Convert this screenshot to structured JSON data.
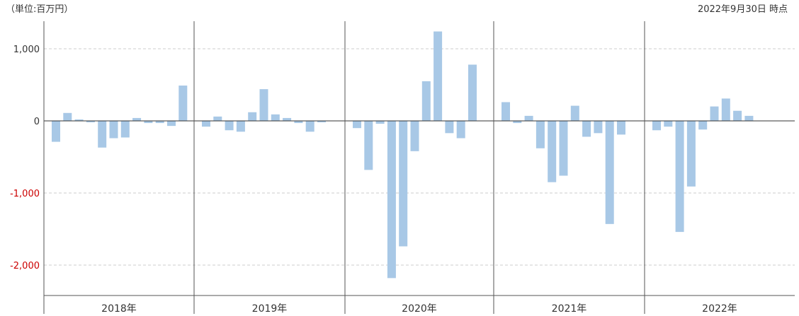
{
  "header": {
    "unit_label": "（単位:百万円）",
    "as_of_label": "2022年9月30日 時点"
  },
  "colors": {
    "bar": "#a8c8e6",
    "negative_tick": "#cc0000",
    "grid": "#cccccc",
    "axis": "#555555"
  },
  "chart_data": {
    "type": "bar",
    "ylim": [
      -2400,
      1350
    ],
    "yticks": [
      {
        "value": 1000,
        "label": "1,000"
      },
      {
        "value": 0,
        "label": "0"
      },
      {
        "value": -1000,
        "label": "-1,000"
      },
      {
        "value": -2000,
        "label": "-2,000"
      }
    ],
    "grid": "dashed-horizontal",
    "groups": [
      {
        "label": "2018年",
        "values": [
          -290,
          110,
          20,
          -20,
          -370,
          -240,
          -230,
          40,
          -30,
          -30,
          -70,
          490
        ]
      },
      {
        "label": "2019年",
        "values": [
          -80,
          60,
          -130,
          -150,
          120,
          440,
          90,
          40,
          -30,
          -150,
          -20
        ]
      },
      {
        "label": "2020年",
        "values": [
          -100,
          -680,
          -40,
          -2180,
          -1740,
          -420,
          550,
          1240,
          -170,
          -240,
          780
        ]
      },
      {
        "label": "2021年",
        "values": [
          260,
          -30,
          70,
          -380,
          -850,
          -760,
          210,
          -220,
          -170,
          -1430,
          -190
        ]
      },
      {
        "label": "2022年",
        "values": [
          -130,
          -80,
          -1540,
          -910,
          -120,
          200,
          310,
          140,
          70
        ]
      }
    ]
  }
}
